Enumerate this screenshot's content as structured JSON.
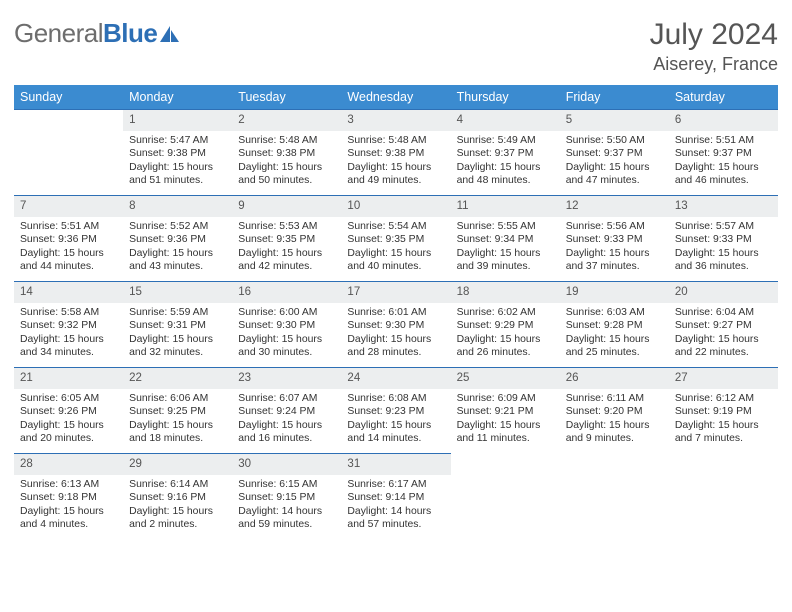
{
  "logo": {
    "text1": "General",
    "text2": "Blue"
  },
  "title": "July 2024",
  "location": "Aiserey, France",
  "colors": {
    "header_bg": "#3b8bd0",
    "header_text": "#ffffff",
    "daynum_bg": "#eceeef",
    "border": "#2d6fb5",
    "body_text": "#333333",
    "title_text": "#555555"
  },
  "weekdays": [
    "Sunday",
    "Monday",
    "Tuesday",
    "Wednesday",
    "Thursday",
    "Friday",
    "Saturday"
  ],
  "weeks": [
    [
      null,
      {
        "n": "1",
        "sr": "Sunrise: 5:47 AM",
        "ss": "Sunset: 9:38 PM",
        "dl": "Daylight: 15 hours and 51 minutes."
      },
      {
        "n": "2",
        "sr": "Sunrise: 5:48 AM",
        "ss": "Sunset: 9:38 PM",
        "dl": "Daylight: 15 hours and 50 minutes."
      },
      {
        "n": "3",
        "sr": "Sunrise: 5:48 AM",
        "ss": "Sunset: 9:38 PM",
        "dl": "Daylight: 15 hours and 49 minutes."
      },
      {
        "n": "4",
        "sr": "Sunrise: 5:49 AM",
        "ss": "Sunset: 9:37 PM",
        "dl": "Daylight: 15 hours and 48 minutes."
      },
      {
        "n": "5",
        "sr": "Sunrise: 5:50 AM",
        "ss": "Sunset: 9:37 PM",
        "dl": "Daylight: 15 hours and 47 minutes."
      },
      {
        "n": "6",
        "sr": "Sunrise: 5:51 AM",
        "ss": "Sunset: 9:37 PM",
        "dl": "Daylight: 15 hours and 46 minutes."
      }
    ],
    [
      {
        "n": "7",
        "sr": "Sunrise: 5:51 AM",
        "ss": "Sunset: 9:36 PM",
        "dl": "Daylight: 15 hours and 44 minutes."
      },
      {
        "n": "8",
        "sr": "Sunrise: 5:52 AM",
        "ss": "Sunset: 9:36 PM",
        "dl": "Daylight: 15 hours and 43 minutes."
      },
      {
        "n": "9",
        "sr": "Sunrise: 5:53 AM",
        "ss": "Sunset: 9:35 PM",
        "dl": "Daylight: 15 hours and 42 minutes."
      },
      {
        "n": "10",
        "sr": "Sunrise: 5:54 AM",
        "ss": "Sunset: 9:35 PM",
        "dl": "Daylight: 15 hours and 40 minutes."
      },
      {
        "n": "11",
        "sr": "Sunrise: 5:55 AM",
        "ss": "Sunset: 9:34 PM",
        "dl": "Daylight: 15 hours and 39 minutes."
      },
      {
        "n": "12",
        "sr": "Sunrise: 5:56 AM",
        "ss": "Sunset: 9:33 PM",
        "dl": "Daylight: 15 hours and 37 minutes."
      },
      {
        "n": "13",
        "sr": "Sunrise: 5:57 AM",
        "ss": "Sunset: 9:33 PM",
        "dl": "Daylight: 15 hours and 36 minutes."
      }
    ],
    [
      {
        "n": "14",
        "sr": "Sunrise: 5:58 AM",
        "ss": "Sunset: 9:32 PM",
        "dl": "Daylight: 15 hours and 34 minutes."
      },
      {
        "n": "15",
        "sr": "Sunrise: 5:59 AM",
        "ss": "Sunset: 9:31 PM",
        "dl": "Daylight: 15 hours and 32 minutes."
      },
      {
        "n": "16",
        "sr": "Sunrise: 6:00 AM",
        "ss": "Sunset: 9:30 PM",
        "dl": "Daylight: 15 hours and 30 minutes."
      },
      {
        "n": "17",
        "sr": "Sunrise: 6:01 AM",
        "ss": "Sunset: 9:30 PM",
        "dl": "Daylight: 15 hours and 28 minutes."
      },
      {
        "n": "18",
        "sr": "Sunrise: 6:02 AM",
        "ss": "Sunset: 9:29 PM",
        "dl": "Daylight: 15 hours and 26 minutes."
      },
      {
        "n": "19",
        "sr": "Sunrise: 6:03 AM",
        "ss": "Sunset: 9:28 PM",
        "dl": "Daylight: 15 hours and 25 minutes."
      },
      {
        "n": "20",
        "sr": "Sunrise: 6:04 AM",
        "ss": "Sunset: 9:27 PM",
        "dl": "Daylight: 15 hours and 22 minutes."
      }
    ],
    [
      {
        "n": "21",
        "sr": "Sunrise: 6:05 AM",
        "ss": "Sunset: 9:26 PM",
        "dl": "Daylight: 15 hours and 20 minutes."
      },
      {
        "n": "22",
        "sr": "Sunrise: 6:06 AM",
        "ss": "Sunset: 9:25 PM",
        "dl": "Daylight: 15 hours and 18 minutes."
      },
      {
        "n": "23",
        "sr": "Sunrise: 6:07 AM",
        "ss": "Sunset: 9:24 PM",
        "dl": "Daylight: 15 hours and 16 minutes."
      },
      {
        "n": "24",
        "sr": "Sunrise: 6:08 AM",
        "ss": "Sunset: 9:23 PM",
        "dl": "Daylight: 15 hours and 14 minutes."
      },
      {
        "n": "25",
        "sr": "Sunrise: 6:09 AM",
        "ss": "Sunset: 9:21 PM",
        "dl": "Daylight: 15 hours and 11 minutes."
      },
      {
        "n": "26",
        "sr": "Sunrise: 6:11 AM",
        "ss": "Sunset: 9:20 PM",
        "dl": "Daylight: 15 hours and 9 minutes."
      },
      {
        "n": "27",
        "sr": "Sunrise: 6:12 AM",
        "ss": "Sunset: 9:19 PM",
        "dl": "Daylight: 15 hours and 7 minutes."
      }
    ],
    [
      {
        "n": "28",
        "sr": "Sunrise: 6:13 AM",
        "ss": "Sunset: 9:18 PM",
        "dl": "Daylight: 15 hours and 4 minutes."
      },
      {
        "n": "29",
        "sr": "Sunrise: 6:14 AM",
        "ss": "Sunset: 9:16 PM",
        "dl": "Daylight: 15 hours and 2 minutes."
      },
      {
        "n": "30",
        "sr": "Sunrise: 6:15 AM",
        "ss": "Sunset: 9:15 PM",
        "dl": "Daylight: 14 hours and 59 minutes."
      },
      {
        "n": "31",
        "sr": "Sunrise: 6:17 AM",
        "ss": "Sunset: 9:14 PM",
        "dl": "Daylight: 14 hours and 57 minutes."
      },
      null,
      null,
      null
    ]
  ]
}
